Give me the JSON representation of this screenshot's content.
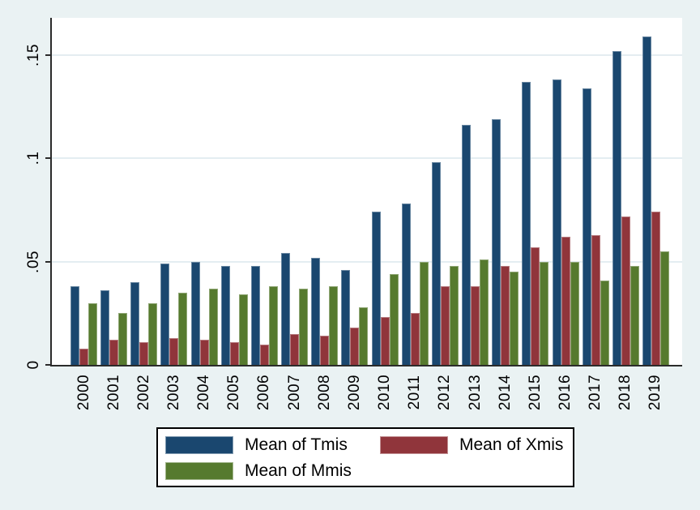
{
  "palette": {
    "background": "#eaf2f3",
    "plot_background": "#ffffff",
    "gridline": "#e4edf1",
    "axis": "#2b2b2b",
    "text": "#000000"
  },
  "legend": {
    "entries": [
      {
        "label": "Mean of Tmis",
        "color": "#1a476f"
      },
      {
        "label": "Mean of Xmis",
        "color": "#90353b"
      },
      {
        "label": "Mean of Mmis",
        "color": "#567a2e"
      }
    ]
  },
  "chart_data": {
    "type": "bar",
    "title": "",
    "xlabel": "",
    "ylabel": "",
    "grid": "horizontal",
    "legend_position": "bottom-center",
    "ylim": [
      0,
      0.168
    ],
    "yticks": [
      {
        "value": 0,
        "label": "0"
      },
      {
        "value": 0.05,
        "label": ".05"
      },
      {
        "value": 0.1,
        "label": ".1"
      },
      {
        "value": 0.15,
        "label": ".15"
      }
    ],
    "categories": [
      "2000",
      "2001",
      "2002",
      "2003",
      "2004",
      "2005",
      "2006",
      "2007",
      "2008",
      "2009",
      "2010",
      "2011",
      "2012",
      "2013",
      "2014",
      "2015",
      "2016",
      "2017",
      "2018",
      "2019"
    ],
    "series": [
      {
        "name": "Mean of Tmis",
        "color": "#1a476f",
        "values": [
          0.038,
          0.036,
          0.04,
          0.049,
          0.05,
          0.048,
          0.048,
          0.054,
          0.052,
          0.046,
          0.074,
          0.078,
          0.098,
          0.116,
          0.119,
          0.137,
          0.138,
          0.134,
          0.152,
          0.159
        ]
      },
      {
        "name": "Mean of Xmis",
        "color": "#90353b",
        "values": [
          0.008,
          0.012,
          0.011,
          0.013,
          0.012,
          0.011,
          0.01,
          0.015,
          0.014,
          0.018,
          0.023,
          0.025,
          0.038,
          0.038,
          0.048,
          0.057,
          0.062,
          0.063,
          0.072,
          0.074
        ]
      },
      {
        "name": "Mean of Mmis",
        "color": "#567a2e",
        "values": [
          0.03,
          0.025,
          0.03,
          0.035,
          0.037,
          0.034,
          0.038,
          0.037,
          0.038,
          0.028,
          0.044,
          0.05,
          0.048,
          0.051,
          0.045,
          0.05,
          0.05,
          0.041,
          0.048,
          0.055
        ]
      }
    ]
  }
}
